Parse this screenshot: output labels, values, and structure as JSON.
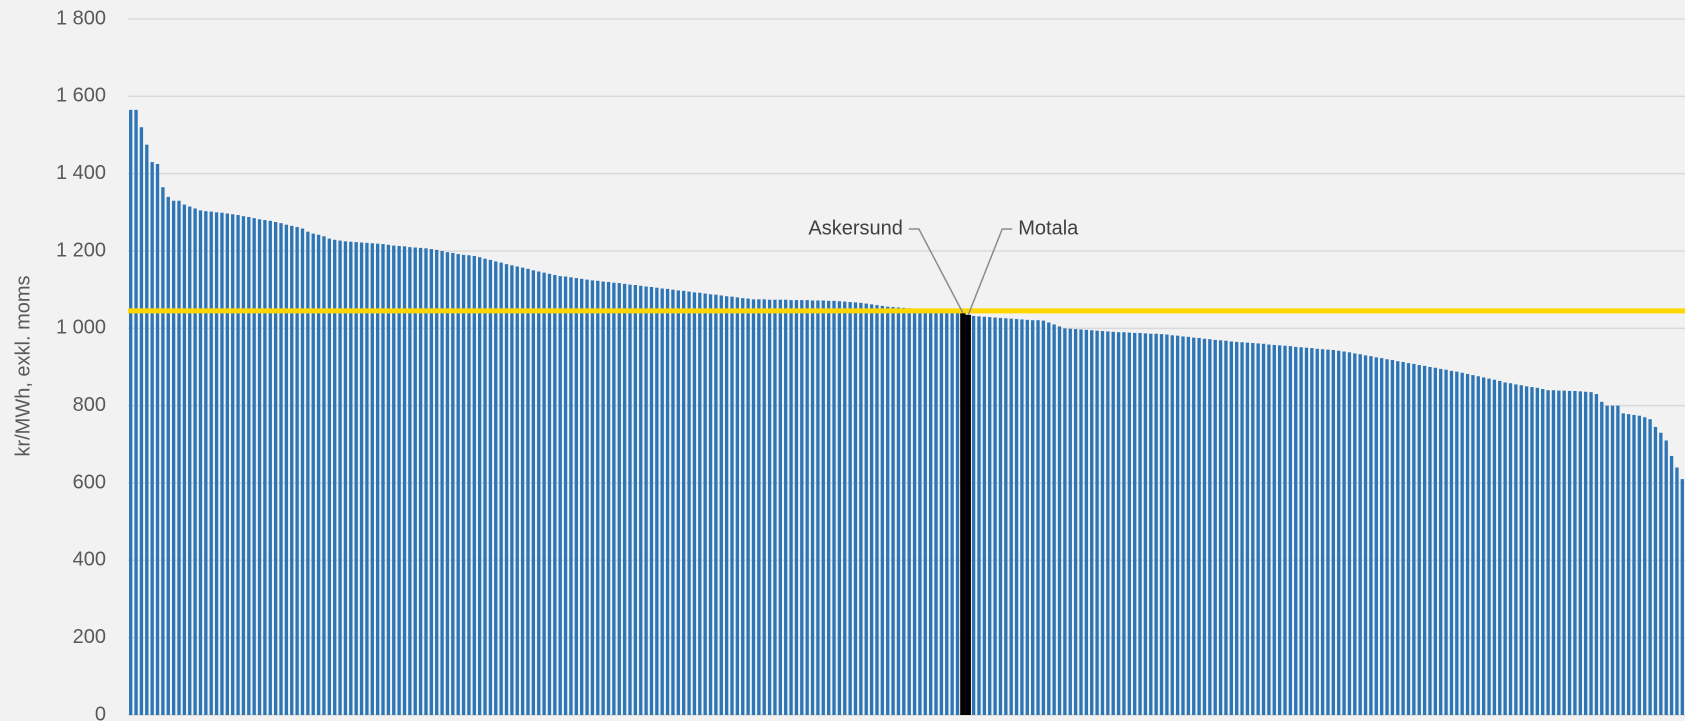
{
  "chart_data": {
    "type": "bar",
    "y_label": "kr/MWh, exkl. moms",
    "color": "#2e75b6",
    "highlight_color": "#000000",
    "reference_line": 1045,
    "reference_color": "#ffd700",
    "grid": true,
    "ylim": [
      0,
      1800
    ],
    "yticks": [
      0,
      200,
      400,
      600,
      800,
      {
        "value": 1000,
        "label": "1 000"
      },
      {
        "value": 1200,
        "label": "1 200"
      },
      {
        "value": 1400,
        "label": "1 400"
      },
      {
        "value": 1600,
        "label": "1 600"
      },
      {
        "value": 1800,
        "label": "1 800"
      }
    ],
    "categories": [
      null,
      null,
      null,
      null,
      null,
      null,
      null,
      null,
      null,
      null,
      null,
      null,
      null,
      null,
      null,
      null,
      null,
      null,
      null,
      null,
      null,
      null,
      null,
      null,
      null,
      null,
      null,
      null,
      null,
      null,
      null,
      null,
      null,
      null,
      null,
      null,
      null,
      null,
      null,
      null,
      null,
      null,
      null,
      null,
      null,
      null,
      null,
      null,
      null,
      null,
      null,
      null,
      null,
      null,
      null,
      null,
      null,
      null,
      null,
      null,
      null,
      null,
      null,
      null,
      null,
      null,
      null,
      null,
      null,
      null,
      null,
      null,
      null,
      null,
      null,
      null,
      null,
      null,
      null,
      null,
      null,
      null,
      null,
      null,
      null,
      null,
      null,
      null,
      null,
      null,
      null,
      null,
      null,
      null,
      null,
      null,
      null,
      null,
      null,
      null,
      null,
      null,
      null,
      null,
      null,
      null,
      null,
      null,
      null,
      null,
      null,
      null,
      null,
      null,
      null,
      null,
      null,
      null,
      null,
      null,
      null,
      null,
      null,
      null,
      null,
      null,
      null,
      null,
      null,
      null,
      null,
      null,
      null,
      null,
      null,
      null,
      null,
      null,
      null,
      null,
      null,
      null,
      null,
      null,
      null,
      null,
      null,
      null,
      null,
      null,
      null,
      null,
      null,
      null,
      null,
      "Askersund",
      "Motala",
      null,
      null,
      null,
      null,
      null,
      null,
      null,
      null,
      null,
      null,
      null,
      null,
      null,
      null,
      null,
      null,
      null,
      null,
      null,
      null,
      null,
      null,
      null,
      null,
      null,
      null,
      null,
      null,
      null,
      null,
      null,
      null,
      null,
      null,
      null,
      null,
      null,
      null,
      null,
      null,
      null,
      null,
      null,
      null,
      null,
      null,
      null,
      null,
      null,
      null,
      null,
      null,
      null,
      null,
      null,
      null,
      null,
      null,
      null,
      null,
      null,
      null,
      null,
      null,
      null,
      null,
      null,
      null,
      null,
      null,
      null,
      null,
      null,
      null,
      null,
      null,
      null,
      null,
      null,
      null,
      null,
      null,
      null,
      null,
      null,
      null,
      null,
      null,
      null,
      null,
      null,
      null,
      null,
      null,
      null,
      null,
      null,
      null,
      null,
      null,
      null,
      null,
      null,
      null,
      null,
      null,
      null,
      null,
      null,
      null,
      null,
      null,
      null,
      null,
      null,
      null,
      null,
      null,
      null,
      null,
      null,
      null,
      null,
      null,
      null,
      null,
      null,
      null,
      null,
      null,
      null,
      null,
      null
    ],
    "values": [
      1565,
      1565,
      1520,
      1475,
      1430,
      1425,
      1365,
      1340,
      1330,
      1330,
      1320,
      1315,
      1310,
      1305,
      1303,
      1302,
      1300,
      1299,
      1297,
      1295,
      1293,
      1290,
      1288,
      1285,
      1282,
      1280,
      1278,
      1275,
      1272,
      1268,
      1265,
      1262,
      1258,
      1250,
      1245,
      1242,
      1238,
      1232,
      1229,
      1227,
      1225,
      1224,
      1223,
      1222,
      1221,
      1220,
      1219,
      1218,
      1216,
      1214,
      1213,
      1212,
      1210,
      1209,
      1208,
      1207,
      1205,
      1203,
      1200,
      1197,
      1195,
      1192,
      1190,
      1189,
      1187,
      1184,
      1180,
      1177,
      1173,
      1170,
      1166,
      1163,
      1160,
      1157,
      1154,
      1150,
      1147,
      1144,
      1141,
      1138,
      1135,
      1134,
      1132,
      1130,
      1128,
      1126,
      1124,
      1123,
      1121,
      1120,
      1118,
      1117,
      1115,
      1113,
      1112,
      1110,
      1108,
      1107,
      1105,
      1103,
      1102,
      1100,
      1098,
      1097,
      1095,
      1093,
      1092,
      1090,
      1088,
      1087,
      1085,
      1083,
      1082,
      1080,
      1078,
      1077,
      1075,
      1075,
      1075,
      1074,
      1074,
      1074,
      1074,
      1073,
      1073,
      1073,
      1073,
      1072,
      1072,
      1072,
      1071,
      1071,
      1070,
      1069,
      1068,
      1067,
      1066,
      1064,
      1062,
      1060,
      1058,
      1056,
      1055,
      1054,
      1053,
      1052,
      1051,
      1050,
      1049,
      1048,
      1046,
      1045,
      1044,
      1042,
      1040,
      1040,
      1035,
      1032,
      1031,
      1030,
      1029,
      1028,
      1027,
      1026,
      1025,
      1024,
      1023,
      1022,
      1021,
      1021,
      1020,
      1015,
      1010,
      1005,
      1000,
      999,
      998,
      997,
      996,
      995,
      994,
      993,
      992,
      991,
      990,
      990,
      989,
      988,
      988,
      987,
      986,
      986,
      985,
      984,
      982,
      981,
      979,
      978,
      976,
      975,
      973,
      972,
      970,
      969,
      968,
      966,
      965,
      964,
      963,
      962,
      961,
      960,
      958,
      957,
      956,
      955,
      954,
      952,
      951,
      950,
      949,
      947,
      946,
      945,
      944,
      942,
      940,
      938,
      935,
      933,
      930,
      928,
      925,
      923,
      920,
      918,
      915,
      913,
      910,
      908,
      905,
      903,
      900,
      898,
      895,
      893,
      890,
      888,
      885,
      882,
      879,
      876,
      873,
      870,
      867,
      864,
      860,
      858,
      855,
      853,
      850,
      848,
      846,
      843,
      840,
      840,
      839,
      839,
      838,
      838,
      837,
      836,
      835,
      830,
      810,
      800,
      800,
      800,
      780,
      778,
      776,
      774,
      770,
      765,
      745,
      730,
      710,
      670,
      640,
      610
    ]
  }
}
